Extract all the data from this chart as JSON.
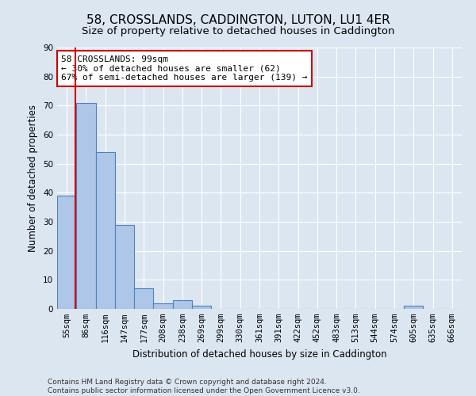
{
  "title": "58, CROSSLANDS, CADDINGTON, LUTON, LU1 4ER",
  "subtitle": "Size of property relative to detached houses in Caddington",
  "xlabel": "Distribution of detached houses by size in Caddington",
  "ylabel": "Number of detached properties",
  "categories": [
    "55sqm",
    "86sqm",
    "116sqm",
    "147sqm",
    "177sqm",
    "208sqm",
    "238sqm",
    "269sqm",
    "299sqm",
    "330sqm",
    "361sqm",
    "391sqm",
    "422sqm",
    "452sqm",
    "483sqm",
    "513sqm",
    "544sqm",
    "574sqm",
    "605sqm",
    "635sqm",
    "666sqm"
  ],
  "values": [
    39,
    71,
    54,
    29,
    7,
    2,
    3,
    1,
    0,
    0,
    0,
    0,
    0,
    0,
    0,
    0,
    0,
    0,
    1,
    0,
    0
  ],
  "bar_color": "#aec6e8",
  "bar_edge_color": "#4f81bd",
  "background_color": "#dce6f1",
  "grid_color": "#ffffff",
  "vline_x": 0.44,
  "vline_color": "#cc0000",
  "annotation_text": "58 CROSSLANDS: 99sqm\n← 30% of detached houses are smaller (62)\n67% of semi-detached houses are larger (139) →",
  "annotation_box_color": "#ffffff",
  "annotation_box_edge_color": "#cc0000",
  "ylim": [
    0,
    90
  ],
  "yticks": [
    0,
    10,
    20,
    30,
    40,
    50,
    60,
    70,
    80,
    90
  ],
  "footer_line1": "Contains HM Land Registry data © Crown copyright and database right 2024.",
  "footer_line2": "Contains public sector information licensed under the Open Government Licence v3.0.",
  "title_fontsize": 11,
  "subtitle_fontsize": 9.5,
  "axis_label_fontsize": 8.5,
  "tick_fontsize": 7.5,
  "annotation_fontsize": 8,
  "footer_fontsize": 6.5
}
